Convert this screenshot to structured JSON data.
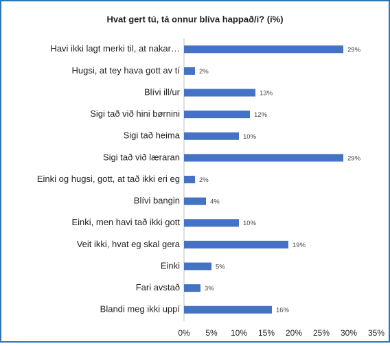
{
  "chart_data": {
    "type": "bar",
    "orientation": "horizontal",
    "title": "Hvat gert tú, tá onnur blíva happað/i? (í%)",
    "categories": [
      "Havi ikki lagt merki til, at nakar…",
      "Hugsi, at tey hava gott av tí",
      "Blívi ill/ur",
      "Sigi tað við hini børnini",
      "Sigi tað heima",
      "Sigi tað við læraran",
      "Einki og hugsi, gott, at tað ikki eri eg",
      "Blívi bangin",
      "Einki, men havi tað ikki gott",
      "Veit ikki, hvat eg skal gera",
      "Einki",
      "Fari avstað",
      "Blandi meg ikki uppí"
    ],
    "values": [
      29,
      2,
      13,
      12,
      10,
      29,
      2,
      4,
      10,
      19,
      5,
      3,
      16
    ],
    "value_labels": [
      "29%",
      "2%",
      "13%",
      "12%",
      "10%",
      "29%",
      "2%",
      "4%",
      "10%",
      "19%",
      "5%",
      "3%",
      "16%"
    ],
    "color": "#4472c4",
    "xlim": [
      0,
      35
    ],
    "xticks": [
      {
        "value": 0,
        "label": "0%"
      },
      {
        "value": 5,
        "label": "5%"
      },
      {
        "value": 10,
        "label": "10%"
      },
      {
        "value": 15,
        "label": "15%"
      },
      {
        "value": 20,
        "label": "20%"
      },
      {
        "value": 25,
        "label": "25%"
      },
      {
        "value": 30,
        "label": "30%"
      },
      {
        "value": 35,
        "label": "35%"
      }
    ],
    "grid": false
  }
}
